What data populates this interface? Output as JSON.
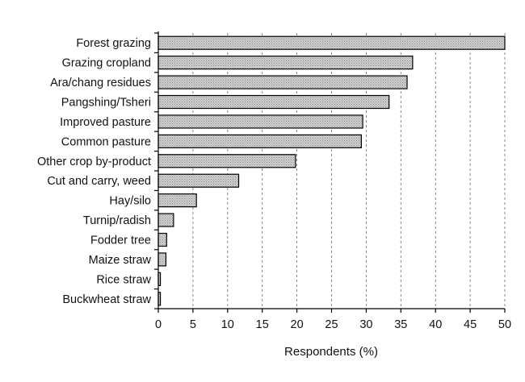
{
  "chart_data": {
    "type": "bar",
    "orientation": "horizontal",
    "categories": [
      "Forest grazing",
      "Grazing cropland",
      "Ara/chang residues",
      "Pangshing/Tsheri",
      "Improved pasture",
      "Common pasture",
      "Other crop by-product",
      "Cut and carry, weed",
      "Hay/silo",
      "Turnip/radish",
      "Fodder tree",
      "Maize straw",
      "Rice straw",
      "Buckwheat straw"
    ],
    "values": [
      50,
      36.7,
      35.9,
      33.3,
      29.5,
      29.3,
      19.8,
      11.6,
      5.5,
      2.2,
      1.2,
      1.1,
      0.3,
      0.3
    ],
    "title": "",
    "xlabel": "Respondents (%)",
    "ylabel": "",
    "xlim": [
      0,
      50
    ],
    "xticks": [
      "0",
      "5",
      "10",
      "15",
      "20",
      "25",
      "30",
      "35",
      "40",
      "45",
      "50"
    ],
    "grid": "vertical dashed",
    "legend": "none",
    "colors": {
      "bar_fill": "#c4c4c4",
      "bar_edge": "#000000",
      "grid": "#666666"
    }
  }
}
